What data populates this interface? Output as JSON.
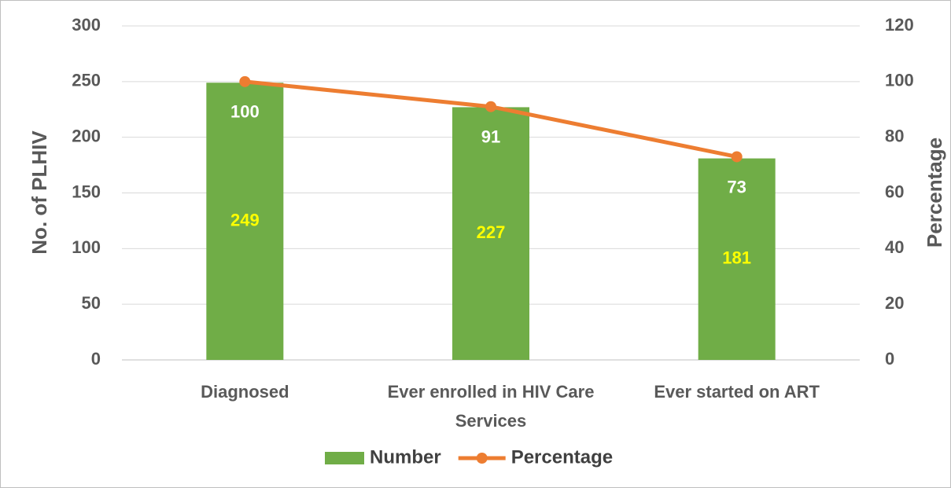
{
  "chart_data": {
    "type": "combo",
    "categories": [
      "Diagnosed",
      "Ever enrolled in HIV Care Services",
      "Ever started on ART"
    ],
    "y_label": "No. of PLHIV",
    "y2_label": "Percentage",
    "ylim": [
      0,
      300
    ],
    "yticks": [
      0,
      50,
      100,
      150,
      200,
      250,
      300
    ],
    "y2lim": [
      0,
      120
    ],
    "y2ticks": [
      0,
      20,
      40,
      60,
      80,
      100,
      120
    ],
    "grid": true,
    "legend": "bottom",
    "series": [
      {
        "name": "Number",
        "type": "bar",
        "color": "#70ad47",
        "label_color": "#ffff00",
        "values": [
          249,
          227,
          181
        ]
      },
      {
        "name": "Percentage",
        "type": "line",
        "axis": "y2",
        "color": "#ed7d31",
        "label_color": "#ffffff",
        "values": [
          100,
          91,
          73
        ]
      }
    ]
  }
}
